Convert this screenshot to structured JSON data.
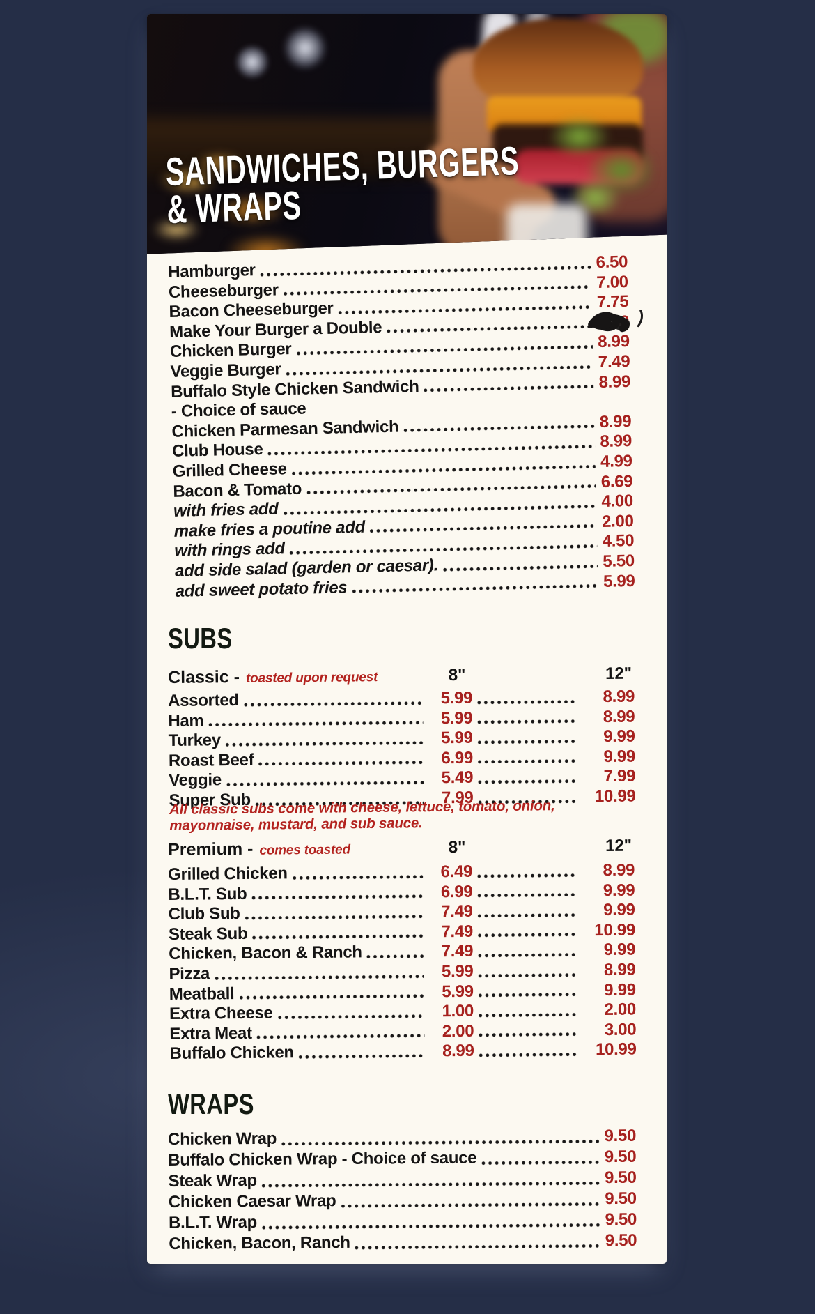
{
  "header": {
    "title_line1": "SANDWICHES, BURGERS",
    "title_line2": "& WRAPS"
  },
  "burgers": {
    "items": [
      {
        "label": "Hamburger",
        "price": "6.50"
      },
      {
        "label": "Cheeseburger",
        "price": "7.00"
      },
      {
        "label": "Bacon Cheeseburger",
        "price": "7.75"
      },
      {
        "label": "Make Your Burger a Double",
        "price": "9.50",
        "scribbled": true
      },
      {
        "label": "Chicken Burger",
        "price": "8.99"
      },
      {
        "label": "Veggie Burger",
        "price": "7.49"
      },
      {
        "label": "Buffalo Style Chicken Sandwich",
        "price": "8.99"
      },
      {
        "label": "- Choice of sauce",
        "note_only": true
      },
      {
        "label": "Chicken Parmesan Sandwich",
        "price": "8.99"
      },
      {
        "label": "Club House",
        "price": "8.99"
      },
      {
        "label": "Grilled Cheese",
        "price": "4.99"
      },
      {
        "label": "Bacon & Tomato",
        "price": "6.69"
      },
      {
        "label": "with fries add",
        "price": "4.00",
        "italic": true
      },
      {
        "label": "make fries a poutine add",
        "price": "2.00",
        "italic": true
      },
      {
        "label": "with rings add",
        "price": "4.50",
        "italic": true
      },
      {
        "label": "add side salad (garden or caesar).",
        "price": "5.50",
        "italic": true
      },
      {
        "label": "add sweet potato fries",
        "price": "5.99",
        "italic": true
      }
    ]
  },
  "subs": {
    "heading": "SUBS",
    "size_col_8": "8\"",
    "size_col_12": "12\"",
    "classic": {
      "label": "Classic -",
      "note": "toasted upon request",
      "items": [
        {
          "label": "Assorted",
          "price8": "5.99",
          "price12": "8.99"
        },
        {
          "label": "Ham",
          "price8": "5.99",
          "price12": "8.99"
        },
        {
          "label": "Turkey",
          "price8": "5.99",
          "price12": "9.99"
        },
        {
          "label": "Roast Beef",
          "price8": "6.99",
          "price12": "9.99"
        },
        {
          "label": "Veggie",
          "price8": "5.49",
          "price12": "7.99"
        },
        {
          "label": "Super Sub",
          "price8": "7.99",
          "price12": "10.99"
        }
      ],
      "footnote_line1": "All classic subs come with cheese, lettuce, tomato, onion,",
      "footnote_line2": "mayonnaise, mustard, and sub sauce."
    },
    "premium": {
      "label": "Premium -",
      "note": "comes toasted",
      "items": [
        {
          "label": "Grilled Chicken",
          "price8": "6.49",
          "price12": "8.99"
        },
        {
          "label": "B.L.T. Sub",
          "price8": "6.99",
          "price12": "9.99"
        },
        {
          "label": "Club Sub",
          "price8": "7.49",
          "price12": "9.99"
        },
        {
          "label": "Steak Sub",
          "price8": "7.49",
          "price12": "10.99"
        },
        {
          "label": "Chicken, Bacon & Ranch",
          "price8": "7.49",
          "price12": "9.99"
        },
        {
          "label": "Pizza",
          "price8": "5.99",
          "price12": "8.99"
        },
        {
          "label": "Meatball",
          "price8": "5.99",
          "price12": "9.99"
        },
        {
          "label": "Extra Cheese",
          "price8": "1.00",
          "price12": "2.00"
        },
        {
          "label": "Extra Meat",
          "price8": "2.00",
          "price12": "3.00"
        },
        {
          "label": "Buffalo Chicken",
          "price8": "8.99",
          "price12": "10.99"
        }
      ]
    }
  },
  "wraps": {
    "heading": "WRAPS",
    "items": [
      {
        "label": "Chicken Wrap",
        "price": "9.50"
      },
      {
        "label": "Buffalo Chicken Wrap - Choice of sauce",
        "price": "9.50"
      },
      {
        "label": "Steak Wrap",
        "price": "9.50"
      },
      {
        "label": "Chicken Caesar Wrap",
        "price": "9.50"
      },
      {
        "label": "B.L.T. Wrap",
        "price": "9.50"
      },
      {
        "label": "Chicken, Bacon, Ranch",
        "price": "9.50"
      }
    ]
  },
  "colors": {
    "background_navy": "#252e47",
    "panel_cream": "#fcf9f1",
    "price_red": "#a6211e",
    "note_red": "#b3231f",
    "heading_black": "#131a12",
    "title_white": "#ffffff"
  }
}
